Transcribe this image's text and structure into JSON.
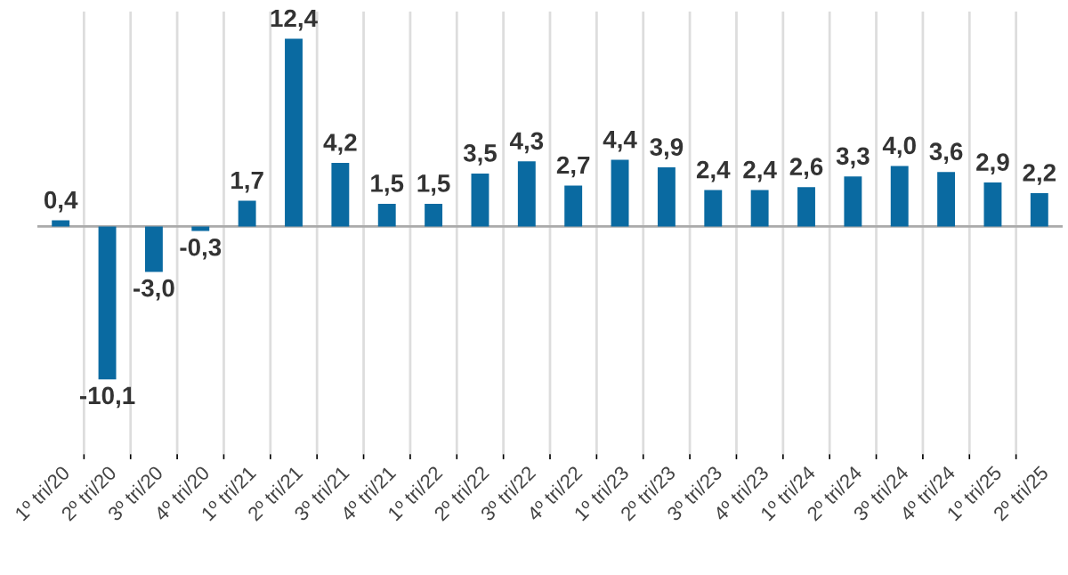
{
  "chart_data": {
    "type": "bar",
    "categories": [
      "1º tri/20",
      "2º tri/20",
      "3º tri/20",
      "4º tri/20",
      "1º tri/21",
      "2º tri/21",
      "3º tri/21",
      "4º tri/21",
      "1º tri/22",
      "2º tri/22",
      "3º tri/22",
      "4º tri/22",
      "1º tri/23",
      "2º tri/23",
      "3º tri/23",
      "4º tri/23",
      "1º tri/24",
      "2º tri/24",
      "3º tri/24",
      "4º tri/24",
      "1º tri/25",
      "2º tri/25"
    ],
    "values": [
      0.4,
      -10.1,
      -3.0,
      -0.3,
      1.7,
      12.4,
      4.2,
      1.5,
      1.5,
      3.5,
      4.3,
      2.7,
      4.4,
      3.9,
      2.4,
      2.4,
      2.6,
      3.3,
      4.0,
      3.6,
      2.9,
      2.2
    ],
    "value_labels": [
      "0,4",
      "-10,1",
      "-3,0",
      "-0,3",
      "1,7",
      "12,4",
      "4,2",
      "1,5",
      "1,5",
      "3,5",
      "4,3",
      "2,7",
      "4,4",
      "3,9",
      "2,4",
      "2,4",
      "2,6",
      "3,3",
      "4,0",
      "3,6",
      "2,9",
      "2,2"
    ],
    "color": "#0a6aa1",
    "grid": "x"
  }
}
